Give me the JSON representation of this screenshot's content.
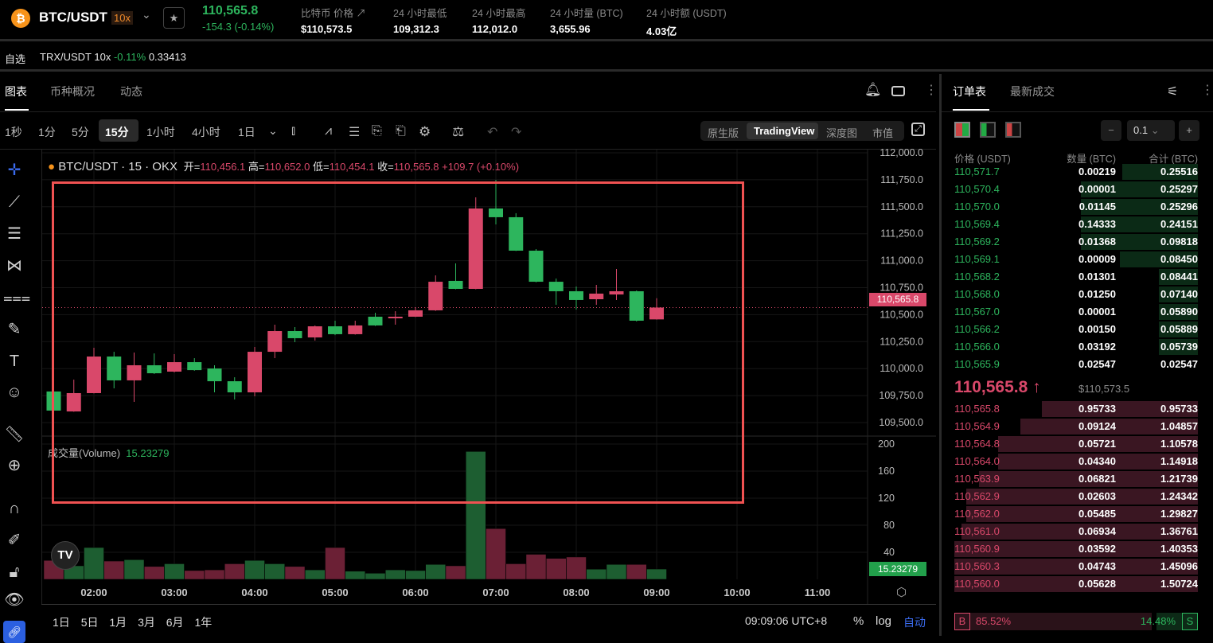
{
  "header": {
    "symbol": "BTC/USDT",
    "leverage": "10x",
    "coin_glyph": "₿",
    "last_price": "110,565.8",
    "change": "-154.3 (-0.14%)",
    "stats": [
      {
        "label": "比特币 价格",
        "value": "$110,573.5"
      },
      {
        "label": "24 小时最低",
        "value": "109,312.3"
      },
      {
        "label": "24 小时最高",
        "value": "112,012.0"
      },
      {
        "label": "24 小时量 (BTC)",
        "value": "3,655.96"
      },
      {
        "label": "24 小时额 (USDT)",
        "value": "4.03亿"
      }
    ]
  },
  "favorites": {
    "label": "自选",
    "items": [
      {
        "symbol": "TRX/USDT 10x",
        "change": "-0.11%",
        "price": "0.33413"
      }
    ]
  },
  "chart_tabs": [
    "图表",
    "币种概况",
    "动态"
  ],
  "timeframes": [
    "1秒",
    "1分",
    "5分",
    "15分",
    "1小时",
    "4小时",
    "1日"
  ],
  "active_timeframe": "15分",
  "view_modes": [
    "原生版",
    "TradingView",
    "深度图",
    "市值"
  ],
  "legend": {
    "title": "BTC/USDT · 15 · OKX",
    "o_label": "开=",
    "o": "110,456.1",
    "h_label": "高=",
    "h": "110,652.0",
    "l_label": "低=",
    "l": "110,454.1",
    "c_label": "收=",
    "c": "110,565.8",
    "chg": "+109.7 (+0.10%)"
  },
  "volume_legend": {
    "label": "成交量(Volume)",
    "value": "15.23279"
  },
  "price_label": "110,565.8",
  "volume_label": "15.23279",
  "range_buttons": [
    "1日",
    "5日",
    "1月",
    "3月",
    "6月",
    "1年"
  ],
  "clock": "09:09:06 UTC+8",
  "scale_opts": {
    "pct": "%",
    "log": "log",
    "auto": "自动"
  },
  "colors": {
    "up": "#d9486a",
    "down": "#2db55d",
    "highlight": "#f05252"
  },
  "chart_data": {
    "type": "candlestick",
    "interval_minutes": 15,
    "start_time": "01:30",
    "price_ticks": [
      "112,000.0",
      "111,750.0",
      "111,500.0",
      "111,250.0",
      "111,000.0",
      "110,750.0",
      "110,500.0",
      "110,250.0",
      "110,000.0",
      "109,750.0",
      "109,500.0"
    ],
    "price_range": [
      109500,
      112000
    ],
    "time_ticks": [
      "02:00",
      "03:00",
      "04:00",
      "05:00",
      "06:00",
      "07:00",
      "08:00",
      "09:00",
      "10:00",
      "11:00"
    ],
    "volume_ticks": [
      "200",
      "160",
      "120",
      "80",
      "40"
    ],
    "ohlc": [
      [
        109788,
        109800,
        109600,
        109611
      ],
      [
        109603,
        109898,
        109600,
        109773
      ],
      [
        109773,
        110193,
        109770,
        110112
      ],
      [
        110112,
        110156,
        109817,
        109891
      ],
      [
        109891,
        110149,
        109692,
        110031
      ],
      [
        110031,
        110141,
        109950,
        109957
      ],
      [
        109972,
        110134,
        109965,
        110060
      ],
      [
        110060,
        110097,
        109980,
        109986
      ],
      [
        110001,
        110031,
        109780,
        109883
      ],
      [
        109883,
        109920,
        109714,
        109780
      ],
      [
        109780,
        110201,
        109743,
        110156
      ],
      [
        110156,
        110407,
        110097,
        110348
      ],
      [
        110348,
        110385,
        110245,
        110282
      ],
      [
        110289,
        110400,
        110260,
        110392
      ],
      [
        110392,
        110444,
        110310,
        110319
      ],
      [
        110319,
        110444,
        110315,
        110400
      ],
      [
        110481,
        110518,
        110395,
        110400
      ],
      [
        110466,
        110532,
        110407,
        110481
      ],
      [
        110481,
        110569,
        110478,
        110540
      ],
      [
        110540,
        110864,
        110535,
        110805
      ],
      [
        110813,
        110975,
        110735,
        110739
      ],
      [
        110739,
        111587,
        110735,
        111484
      ],
      [
        111484,
        111749,
        111336,
        111403
      ],
      [
        111403,
        111440,
        111090,
        111093
      ],
      [
        111093,
        111108,
        110800,
        110805
      ],
      [
        110805,
        110835,
        110591,
        110717
      ],
      [
        110717,
        110761,
        110547,
        110636
      ],
      [
        110643,
        110776,
        110591,
        110695
      ],
      [
        110687,
        110923,
        110636,
        110717
      ],
      [
        110717,
        110724,
        110437,
        110444
      ],
      [
        110456.1,
        110652.0,
        110454.1,
        110565.8
      ]
    ],
    "volume": [
      28,
      20,
      47,
      27,
      29,
      19,
      23,
      13,
      14,
      23,
      28,
      23,
      19,
      14,
      47,
      12,
      9,
      14,
      13,
      22,
      20,
      189,
      75,
      23,
      37,
      31,
      33,
      15,
      22,
      22,
      15.23
    ],
    "volume_dir": [
      "up",
      "down",
      "down",
      "up",
      "down",
      "up",
      "down",
      "up",
      "up",
      "up",
      "down",
      "down",
      "up",
      "down",
      "up",
      "down",
      "down",
      "down",
      "down",
      "down",
      "up",
      "down",
      "up",
      "up",
      "up",
      "up",
      "up",
      "down",
      "down",
      "up",
      "down"
    ]
  },
  "orderbook": {
    "tabs": [
      "订单表",
      "最新成交"
    ],
    "step": "0.1",
    "headers": [
      "价格 (USDT)",
      "数量 (BTC)",
      "合计 (BTC)"
    ],
    "asks": [
      [
        "110,571.7",
        "0.00219",
        "0.25516"
      ],
      [
        "110,570.4",
        "0.00001",
        "0.25297"
      ],
      [
        "110,570.0",
        "0.01145",
        "0.25296"
      ],
      [
        "110,569.4",
        "0.14333",
        "0.24151"
      ],
      [
        "110,569.2",
        "0.01368",
        "0.09818"
      ],
      [
        "110,569.1",
        "0.00009",
        "0.08450"
      ],
      [
        "110,568.2",
        "0.01301",
        "0.08441"
      ],
      [
        "110,568.0",
        "0.01250",
        "0.07140"
      ],
      [
        "110,567.0",
        "0.00001",
        "0.05890"
      ],
      [
        "110,566.2",
        "0.00150",
        "0.05889"
      ],
      [
        "110,566.0",
        "0.03192",
        "0.05739"
      ],
      [
        "110,565.9",
        "0.02547",
        "0.02547"
      ]
    ],
    "ask_depth": [
      0.31,
      0.48,
      0.48,
      0.48,
      0.48,
      0.32,
      0.16,
      0.16,
      0.16,
      0.16,
      0.16,
      0.0
    ],
    "mid_price": "110,565.8",
    "mid_arrow": "↑",
    "mid_usd": "$110,573.5",
    "bids": [
      [
        "110,565.8",
        "0.95733",
        "0.95733"
      ],
      [
        "110,564.9",
        "0.09124",
        "1.04857"
      ],
      [
        "110,564.8",
        "0.05721",
        "1.10578"
      ],
      [
        "110,564.0",
        "0.04340",
        "1.14918"
      ],
      [
        "110,563.9",
        "0.06821",
        "1.21739"
      ],
      [
        "110,562.9",
        "0.02603",
        "1.24342"
      ],
      [
        "110,562.0",
        "0.05485",
        "1.29827"
      ],
      [
        "110,561.0",
        "0.06934",
        "1.36761"
      ],
      [
        "110,560.9",
        "0.03592",
        "1.40353"
      ],
      [
        "110,560.3",
        "0.04743",
        "1.45096"
      ],
      [
        "110,560.0",
        "0.05628",
        "1.50724"
      ]
    ],
    "bid_depth": [
      0.64,
      0.73,
      0.82,
      0.82,
      0.9,
      0.95,
      0.95,
      0.97,
      1.0,
      1.0,
      1.0
    ],
    "buy_label": "B",
    "buy_pct": "85.52%",
    "sell_label": "S",
    "sell_pct": "14.48%",
    "buy_ratio": 0.8552
  }
}
